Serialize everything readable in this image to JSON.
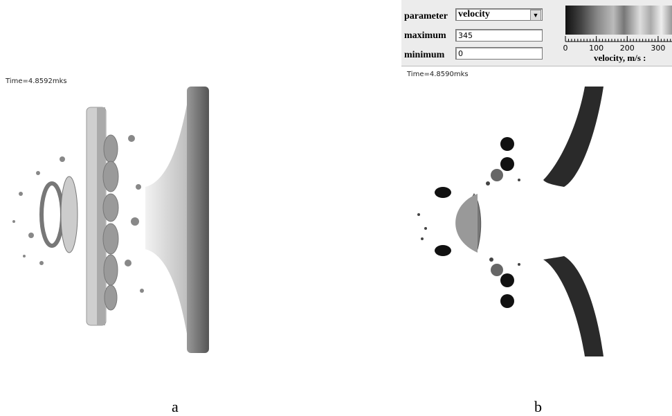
{
  "panel_a": {
    "time": "Time=4.8592mks",
    "caption": "a"
  },
  "panel_b": {
    "time": "Time=4.8590mks",
    "caption": "b",
    "controls": {
      "parameter_label": "parameter",
      "parameter_value": "velocity",
      "maximum_label": "maximum",
      "maximum": 345,
      "minimum_label": "minimum",
      "minimum": 0
    },
    "colorbar": {
      "ticks": [
        0,
        100,
        200,
        300
      ],
      "label": "velocity, m/s :"
    }
  }
}
